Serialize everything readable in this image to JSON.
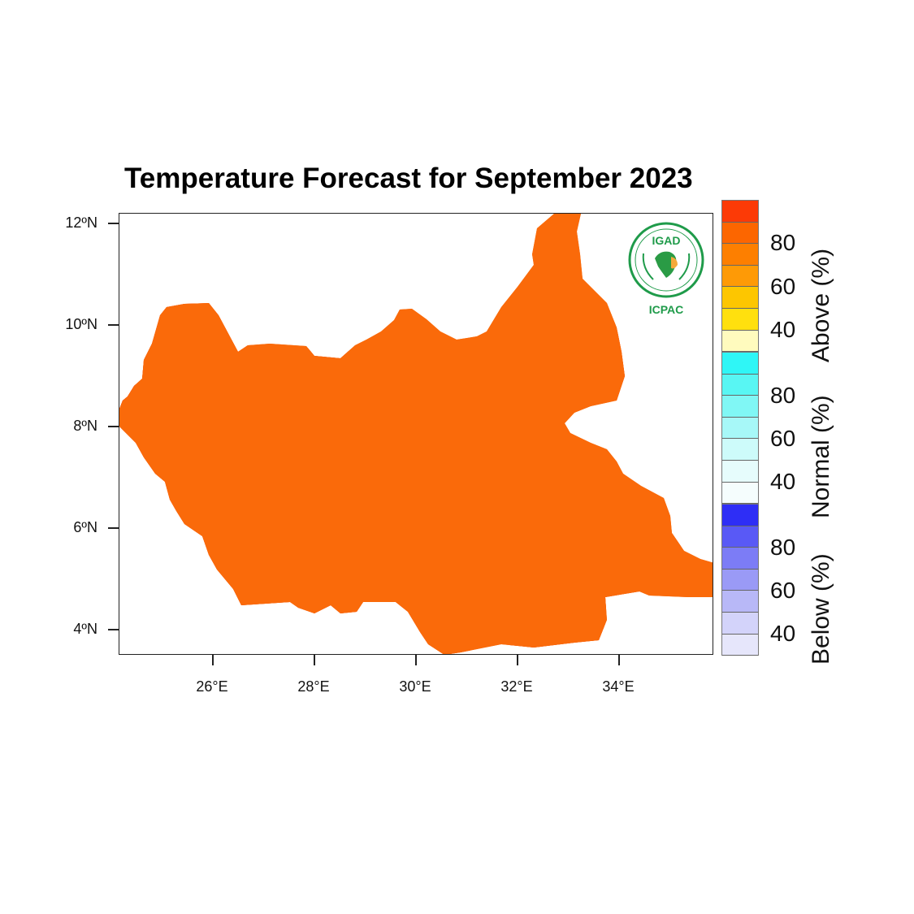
{
  "title": "Temperature Forecast for September 2023",
  "y_axis": {
    "ticks": [
      "12ºN",
      "10ºN",
      "8ºN",
      "6ºN",
      "4ºN"
    ]
  },
  "x_axis": {
    "ticks": [
      "26°E",
      "28°E",
      "30°E",
      "32°E",
      "34°E"
    ]
  },
  "logo": {
    "top": "IGAD",
    "bottom": "ICPAC"
  },
  "colorbar": {
    "groups": [
      {
        "label": "Above (%)",
        "numbers": [
          "80",
          "60",
          "40"
        ],
        "colors": [
          "#fc3a06",
          "#fc6600",
          "#fd7f00",
          "#fe9a06",
          "#fdc600",
          "#ffe00e",
          "#fffbbe"
        ]
      },
      {
        "label": "Normal (%)",
        "numbers": [
          "80",
          "60",
          "40"
        ],
        "colors": [
          "#2ff6f6",
          "#58f6f3",
          "#80f7f5",
          "#a7f8f8",
          "#cdfbfa",
          "#e6fcfc",
          "#f5fdfd"
        ]
      },
      {
        "label": "Below (%)",
        "numbers": [
          "80",
          "60",
          "40"
        ],
        "colors": [
          "#2e2ef6",
          "#5959f6",
          "#7c7cf6",
          "#9a9af6",
          "#b8b8f7",
          "#d3d3fa",
          "#e6e6fb"
        ]
      }
    ]
  },
  "map_colors": {
    "very_high": "#f20d0a",
    "high": "#fa3903",
    "mid": "#fa6a0a",
    "border": "#111111"
  }
}
